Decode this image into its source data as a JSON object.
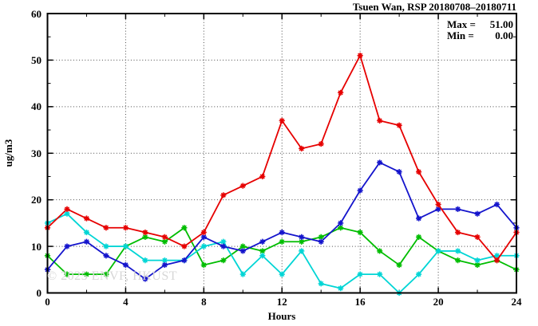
{
  "title": "Tsuen Wan, RSP 20180708–20180711",
  "legend": {
    "max_label": "Max =",
    "max_value": "51.00",
    "min_label": "Min =",
    "min_value": "0.00"
  },
  "watermark": "© 2025 ENVF, HKUST",
  "chart_data": {
    "type": "line",
    "title": "Tsuen Wan, RSP 20180708–20180711",
    "xlabel": "Hours",
    "ylabel": "ug/m3",
    "xlim": [
      0,
      24
    ],
    "ylim": [
      0,
      60
    ],
    "x_major_ticks": [
      0,
      4,
      8,
      12,
      16,
      20,
      24
    ],
    "x_minor_step": 2,
    "y_major_ticks": [
      0,
      10,
      20,
      30,
      40,
      50,
      60
    ],
    "y_minor_step": 5,
    "grid": "dotted lines at major ticks, mirrored inward ticks on all sides",
    "legend_position": "top-right inside plot",
    "stats": {
      "max": 51.0,
      "min": 0.0
    },
    "x": [
      0,
      1,
      2,
      3,
      4,
      5,
      6,
      7,
      8,
      9,
      10,
      11,
      12,
      13,
      14,
      15,
      16,
      17,
      18,
      19,
      20,
      21,
      22,
      23,
      24
    ],
    "series": [
      {
        "name": "series-red",
        "color": "#e60000",
        "values": [
          14,
          18,
          16,
          14,
          14,
          13,
          12,
          10,
          13,
          21,
          23,
          25,
          37,
          31,
          32,
          43,
          51,
          37,
          36,
          26,
          19,
          13,
          12,
          7,
          13
        ]
      },
      {
        "name": "series-blue",
        "color": "#1414cc",
        "values": [
          5,
          10,
          11,
          8,
          6,
          3,
          6,
          7,
          12,
          10,
          9,
          11,
          13,
          12,
          11,
          15,
          22,
          28,
          26,
          16,
          18,
          18,
          17,
          19,
          14
        ]
      },
      {
        "name": "series-cyan",
        "color": "#00d5d5",
        "values": [
          15,
          17,
          13,
          10,
          10,
          7,
          7,
          7,
          10,
          11,
          4,
          8,
          4,
          9,
          2,
          1,
          4,
          4,
          0,
          4,
          9,
          9,
          7,
          8,
          8
        ]
      },
      {
        "name": "series-green",
        "color": "#00bd00",
        "values": [
          8,
          4,
          4,
          4,
          10,
          12,
          11,
          14,
          6,
          7,
          10,
          9,
          11,
          11,
          12,
          14,
          13,
          9,
          6,
          12,
          9,
          7,
          6,
          7,
          5
        ]
      }
    ]
  }
}
